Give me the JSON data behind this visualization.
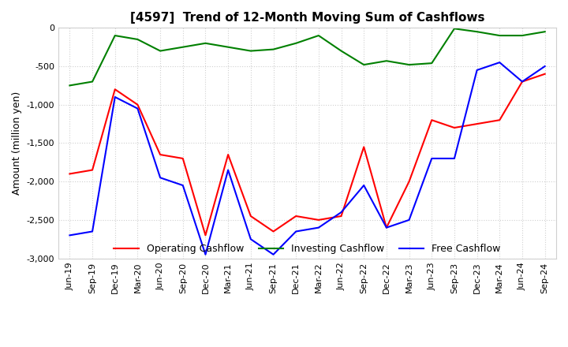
{
  "title": "[4597]  Trend of 12-Month Moving Sum of Cashflows",
  "ylabel": "Amount (million yen)",
  "ylim": [
    -3000,
    0
  ],
  "yticks": [
    0,
    -500,
    -1000,
    -1500,
    -2000,
    -2500,
    -3000
  ],
  "background_color": "#ffffff",
  "grid_color": "#d0d0d0",
  "x_labels": [
    "Jun-19",
    "Sep-19",
    "Dec-19",
    "Mar-20",
    "Jun-20",
    "Sep-20",
    "Dec-20",
    "Mar-21",
    "Jun-21",
    "Sep-21",
    "Dec-21",
    "Mar-22",
    "Jun-22",
    "Sep-22",
    "Dec-22",
    "Mar-23",
    "Jun-23",
    "Sep-23",
    "Dec-23",
    "Mar-24",
    "Jun-24",
    "Sep-24"
  ],
  "operating": [
    -1900,
    -1850,
    -800,
    -1000,
    -1650,
    -1700,
    -2700,
    -1650,
    -2450,
    -2650,
    -2450,
    -2500,
    -2450,
    -1550,
    -2600,
    -2000,
    -1200,
    -1300,
    -1250,
    -1200,
    -700,
    -600
  ],
  "investing": [
    -750,
    -700,
    -100,
    -150,
    -300,
    -250,
    -200,
    -250,
    -300,
    -280,
    -200,
    -100,
    -300,
    -480,
    -430,
    -480,
    -460,
    -10,
    -50,
    -100,
    -100,
    -50
  ],
  "free": [
    -2700,
    -2650,
    -900,
    -1050,
    -1950,
    -2050,
    -2950,
    -1850,
    -2750,
    -2950,
    -2650,
    -2600,
    -2400,
    -2050,
    -2600,
    -2500,
    -1700,
    -1700,
    -550,
    -450,
    -700,
    -500
  ],
  "legend_labels": [
    "Operating Cashflow",
    "Investing Cashflow",
    "Free Cashflow"
  ],
  "line_colors": [
    "#ff0000",
    "#008000",
    "#0000ff"
  ],
  "title_fontsize": 11,
  "axis_fontsize": 9,
  "tick_fontsize": 8
}
